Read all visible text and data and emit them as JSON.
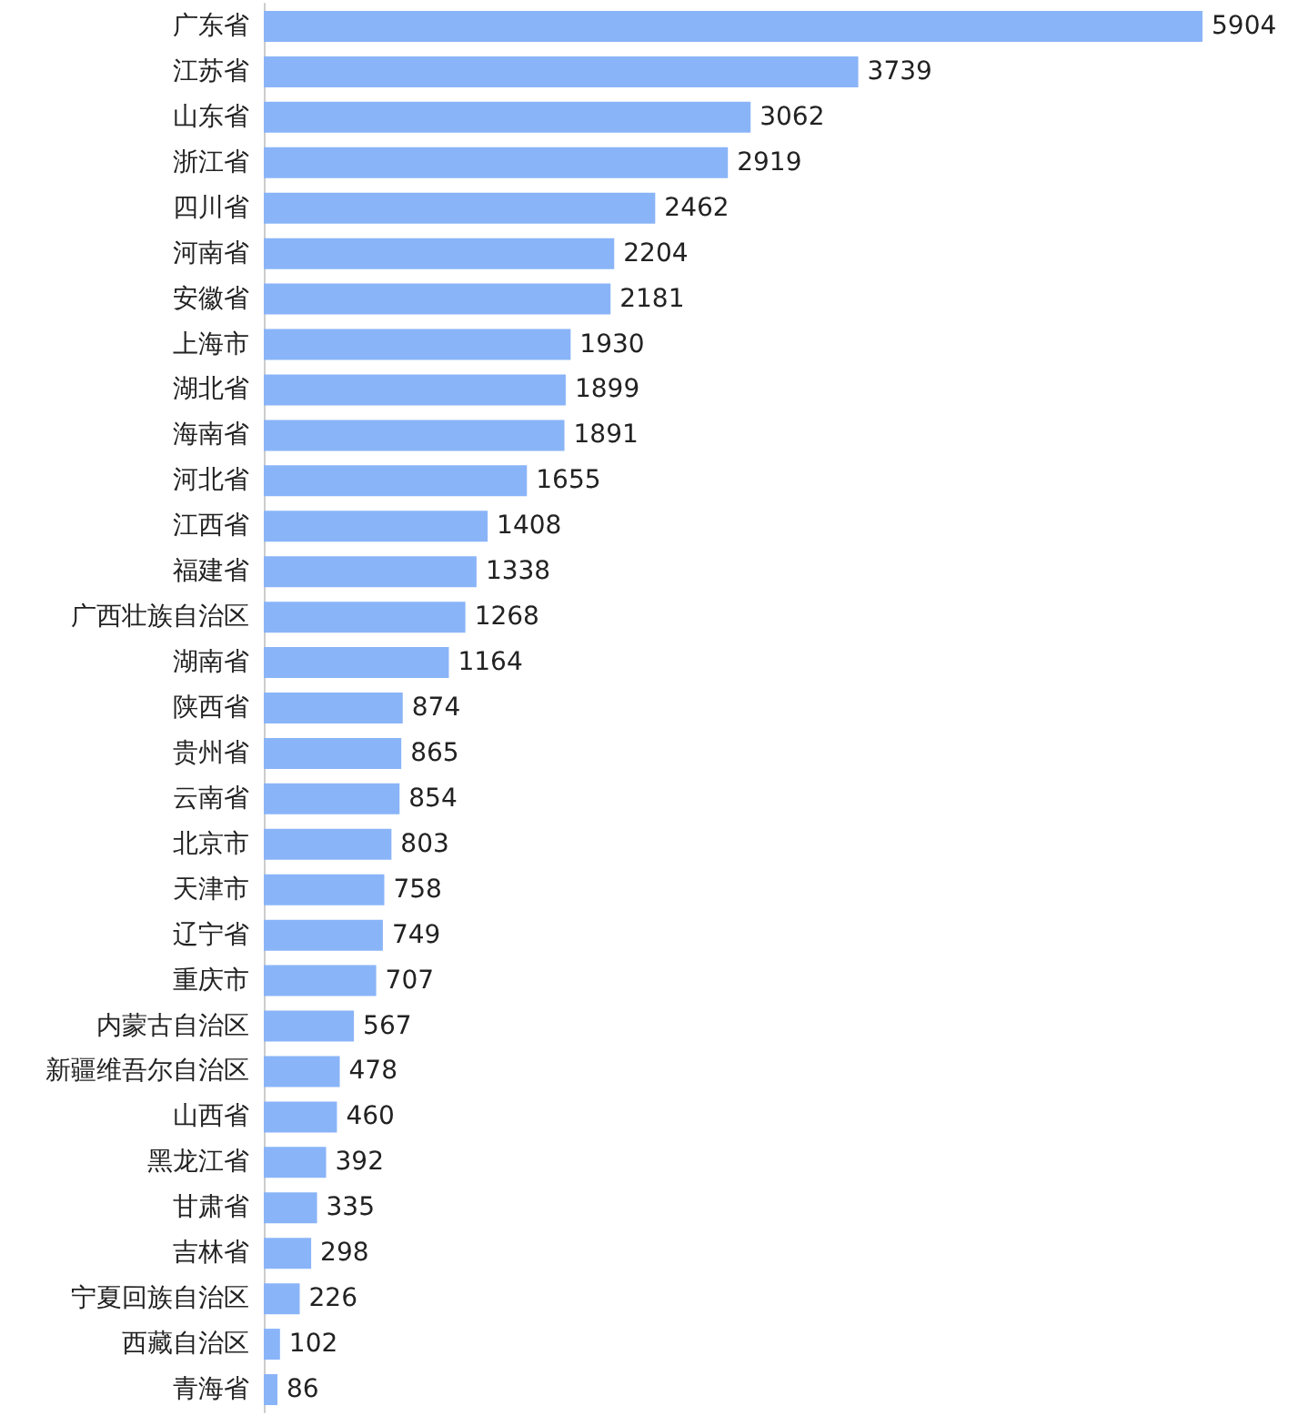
{
  "chart_data": {
    "type": "bar",
    "orientation": "horizontal",
    "data_labels": true,
    "categories": [
      "广东省",
      "江苏省",
      "山东省",
      "浙江省",
      "四川省",
      "河南省",
      "安徽省",
      "上海市",
      "湖北省",
      "海南省",
      "河北省",
      "江西省",
      "福建省",
      "广西壮族自治区",
      "湖南省",
      "陕西省",
      "贵州省",
      "云南省",
      "北京市",
      "天津市",
      "辽宁省",
      "重庆市",
      "内蒙古自治区",
      "新疆维吾尔自治区",
      "山西省",
      "黑龙江省",
      "甘肃省",
      "吉林省",
      "宁夏回族自治区",
      "西藏自治区",
      "青海省"
    ],
    "series": [
      {
        "color": "#8ab4f8",
        "values": [
          5904,
          3739,
          3062,
          2919,
          2462,
          2204,
          2181,
          1930,
          1899,
          1891,
          1655,
          1408,
          1338,
          1268,
          1164,
          874,
          865,
          854,
          803,
          758,
          749,
          707,
          567,
          478,
          460,
          392,
          335,
          298,
          226,
          102,
          86
        ]
      }
    ]
  }
}
